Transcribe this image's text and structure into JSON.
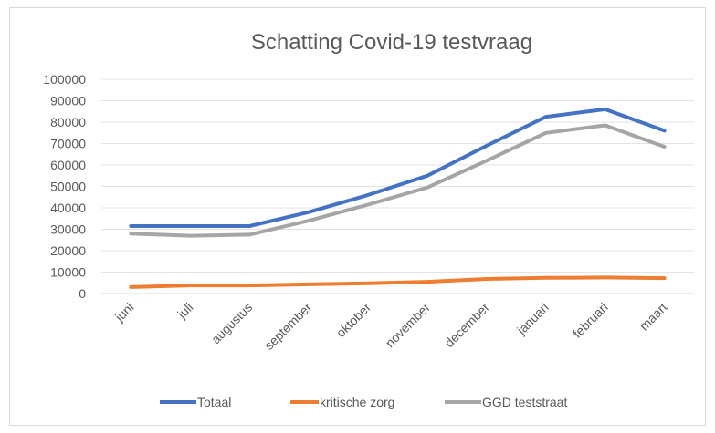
{
  "chart_data": {
    "type": "line",
    "title": "Schatting Covid-19 testvraag",
    "xlabel": "",
    "ylabel": "",
    "categories": [
      "juni",
      "juli",
      "augustus",
      "september",
      "oktober",
      "november",
      "december",
      "januari",
      "februari",
      "maart"
    ],
    "ylim": [
      0,
      100000
    ],
    "yticks": [
      "0",
      "10000",
      "20000",
      "30000",
      "40000",
      "50000",
      "60000",
      "70000",
      "80000",
      "90000",
      "100000"
    ],
    "grid": true,
    "legend_position": "bottom",
    "series": [
      {
        "name": "Totaal",
        "color": "#4472c4",
        "values": [
          31500,
          31500,
          31500,
          38000,
          46000,
          55000,
          69000,
          82500,
          86000,
          76000
        ]
      },
      {
        "name": "kritische zorg",
        "color": "#ed7d31",
        "values": [
          3000,
          3800,
          3800,
          4300,
          4800,
          5500,
          6800,
          7300,
          7500,
          7200
        ]
      },
      {
        "name": "GGD teststraat",
        "color": "#a5a5a5",
        "values": [
          28000,
          27000,
          27500,
          34000,
          41500,
          49500,
          62000,
          75000,
          78500,
          68500
        ]
      }
    ]
  }
}
